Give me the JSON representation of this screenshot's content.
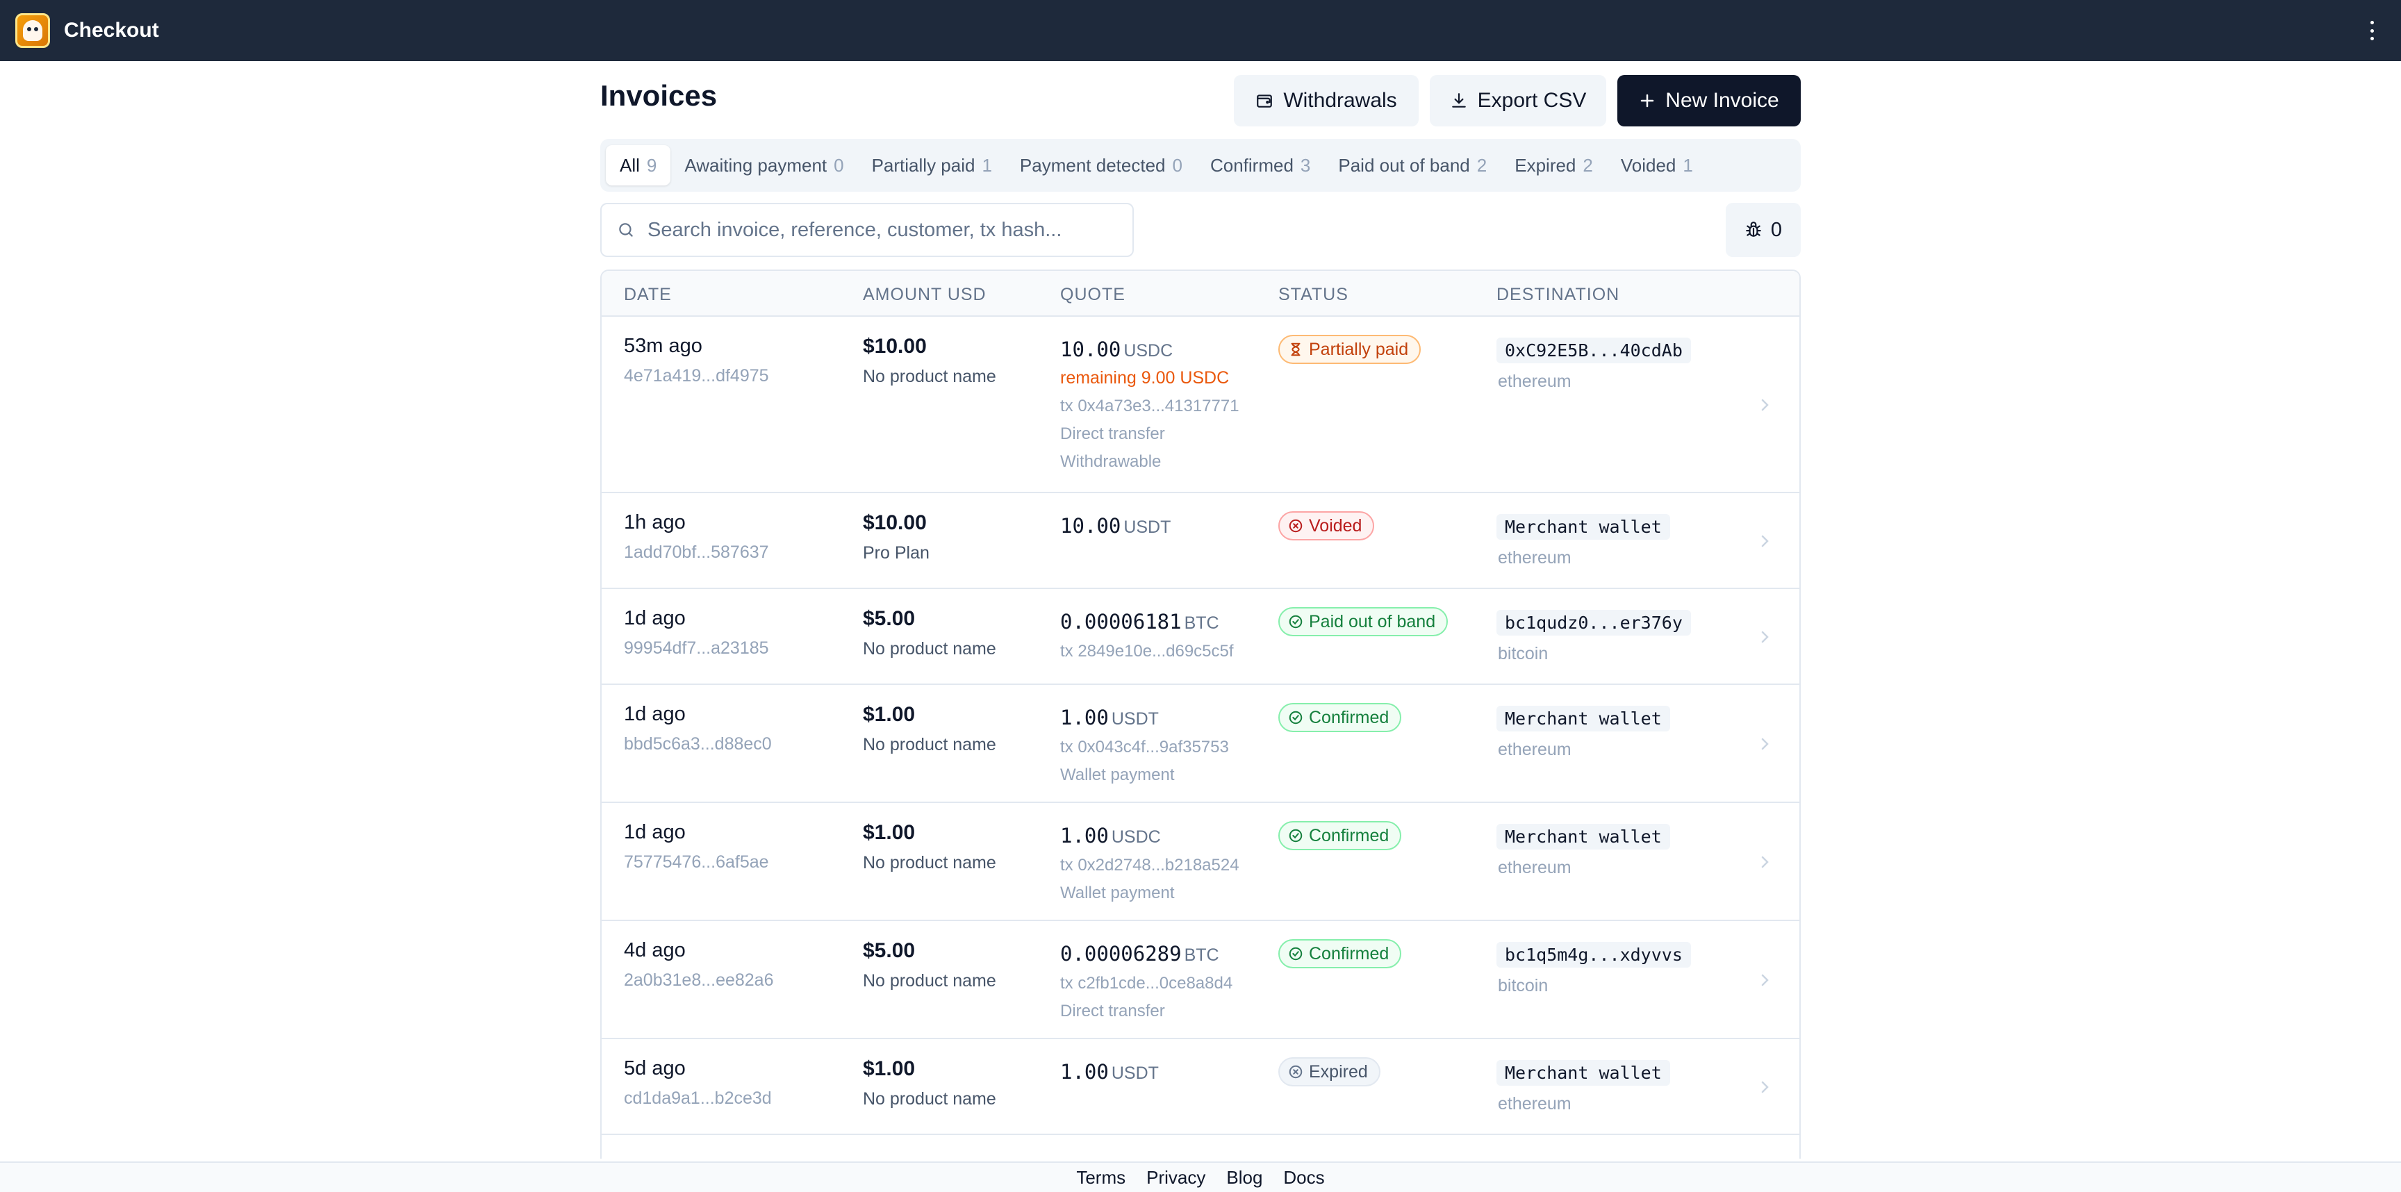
{
  "app": {
    "title": "Checkout"
  },
  "page": {
    "title": "Invoices"
  },
  "actions": {
    "withdrawals": "Withdrawals",
    "export_csv": "Export CSV",
    "new_invoice": "New Invoice"
  },
  "tabs": [
    {
      "label": "All",
      "count": "9",
      "active": true
    },
    {
      "label": "Awaiting payment",
      "count": "0"
    },
    {
      "label": "Partially paid",
      "count": "1"
    },
    {
      "label": "Payment detected",
      "count": "0"
    },
    {
      "label": "Confirmed",
      "count": "3"
    },
    {
      "label": "Paid out of band",
      "count": "2"
    },
    {
      "label": "Expired",
      "count": "2"
    },
    {
      "label": "Voided",
      "count": "1"
    }
  ],
  "search": {
    "placeholder": "Search invoice, reference, customer, tx hash..."
  },
  "bug_count": "0",
  "table": {
    "headers": [
      "DATE",
      "AMOUNT USD",
      "QUOTE",
      "STATUS",
      "DESTINATION"
    ],
    "rows": [
      {
        "date": "53m ago",
        "id": "4e71a419...df4975",
        "amount": "$10.00",
        "product": "No product name",
        "quote_amount": "10.00",
        "quote_currency": "USDC",
        "remaining": "remaining 9.00 USDC",
        "tx": "tx 0x4a73e3...41317771",
        "method": "Direct transfer",
        "extra": "Withdrawable",
        "status": "Partially paid",
        "destination": "0xC92E5B...40cdAb",
        "network": "ethereum"
      },
      {
        "date": "1h ago",
        "id": "1add70bf...587637",
        "amount": "$10.00",
        "product": "Pro Plan",
        "quote_amount": "10.00",
        "quote_currency": "USDT",
        "status": "Voided",
        "destination": "Merchant wallet",
        "network": "ethereum"
      },
      {
        "date": "1d ago",
        "id": "99954df7...a23185",
        "amount": "$5.00",
        "product": "No product name",
        "quote_amount": "0.00006181",
        "quote_currency": "BTC",
        "tx": "tx 2849e10e...d69c5c5f",
        "status": "Paid out of band",
        "destination": "bc1qudz0...er376y",
        "network": "bitcoin"
      },
      {
        "date": "1d ago",
        "id": "bbd5c6a3...d88ec0",
        "amount": "$1.00",
        "product": "No product name",
        "quote_amount": "1.00",
        "quote_currency": "USDT",
        "tx": "tx 0x043c4f...9af35753",
        "method": "Wallet payment",
        "status": "Confirmed",
        "destination": "Merchant wallet",
        "network": "ethereum"
      },
      {
        "date": "1d ago",
        "id": "75775476...6af5ae",
        "amount": "$1.00",
        "product": "No product name",
        "quote_amount": "1.00",
        "quote_currency": "USDC",
        "tx": "tx 0x2d2748...b218a524",
        "method": "Wallet payment",
        "status": "Confirmed",
        "destination": "Merchant wallet",
        "network": "ethereum"
      },
      {
        "date": "4d ago",
        "id": "2a0b31e8...ee82a6",
        "amount": "$5.00",
        "product": "No product name",
        "quote_amount": "0.00006289",
        "quote_currency": "BTC",
        "tx": "tx c2fb1cde...0ce8a8d4",
        "method": "Direct transfer",
        "status": "Confirmed",
        "destination": "bc1q5m4g...xdyvvs",
        "network": "bitcoin"
      },
      {
        "date": "5d ago",
        "id": "cd1da9a1...b2ce3d",
        "amount": "$1.00",
        "product": "No product name",
        "quote_amount": "1.00",
        "quote_currency": "USDT",
        "status": "Expired",
        "destination": "Merchant wallet",
        "network": "ethereum"
      }
    ]
  },
  "footer": {
    "links": [
      "Terms",
      "Privacy",
      "Blog",
      "Docs"
    ]
  },
  "colors": {
    "topbar": "#1e293b",
    "primary_button": "#0f172a",
    "partial": "#c2410c",
    "voided": "#b91c1c",
    "confirmed": "#15803d",
    "expired": "#475569"
  }
}
